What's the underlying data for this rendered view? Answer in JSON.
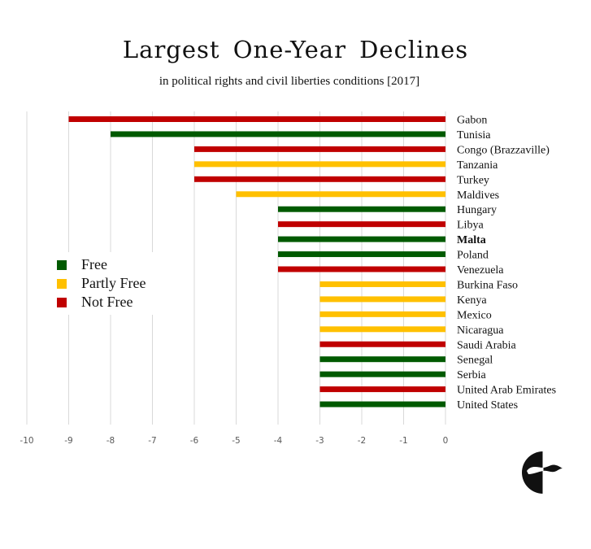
{
  "title": "Largest One-Year Declines",
  "subtitle": "in political rights and civil liberties conditions [2017]",
  "colors": {
    "Free": "#005A00",
    "Partly Free": "#FFC000",
    "Not Free": "#C00000",
    "grid": "#D9D9D9"
  },
  "legend": [
    {
      "label": "Free",
      "status": "Free"
    },
    {
      "label": "Partly Free",
      "status": "Partly Free"
    },
    {
      "label": "Not Free",
      "status": "Not Free"
    }
  ],
  "chart_data": {
    "type": "bar",
    "orientation": "horizontal",
    "title": "Largest One-Year Declines",
    "subtitle": "in political rights and civil liberties conditions [2017]",
    "xlabel": "",
    "ylabel": "",
    "xlim": [
      -10,
      0
    ],
    "xticks": [
      "-10",
      "-9",
      "-8",
      "-7",
      "-6",
      "-5",
      "-4",
      "-3",
      "-2",
      "-1",
      "0"
    ],
    "grid": true,
    "legend_position": "left-middle",
    "bold_categories": [
      "Malta"
    ],
    "categories": [
      "Gabon",
      "Tunisia",
      "Congo (Brazzaville)",
      "Tanzania",
      "Turkey",
      "Maldives",
      "Hungary",
      "Libya",
      "Malta",
      "Poland",
      "Venezuela",
      "Burkina Faso",
      "Kenya",
      "Mexico",
      "Nicaragua",
      "Saudi Arabia",
      "Senegal",
      "Serbia",
      "United Arab Emirates",
      "United States"
    ],
    "values": [
      -9,
      -8,
      -6,
      -6,
      -6,
      -5,
      -4,
      -4,
      -4,
      -4,
      -4,
      -3,
      -3,
      -3,
      -3,
      -3,
      -3,
      -3,
      -3,
      -3
    ],
    "status": [
      "Not Free",
      "Free",
      "Not Free",
      "Partly Free",
      "Not Free",
      "Partly Free",
      "Free",
      "Not Free",
      "Free",
      "Free",
      "Not Free",
      "Partly Free",
      "Partly Free",
      "Partly Free",
      "Partly Free",
      "Not Free",
      "Free",
      "Free",
      "Not Free",
      "Free"
    ]
  },
  "logo": {
    "icon": "freedom-house-logo-icon"
  }
}
